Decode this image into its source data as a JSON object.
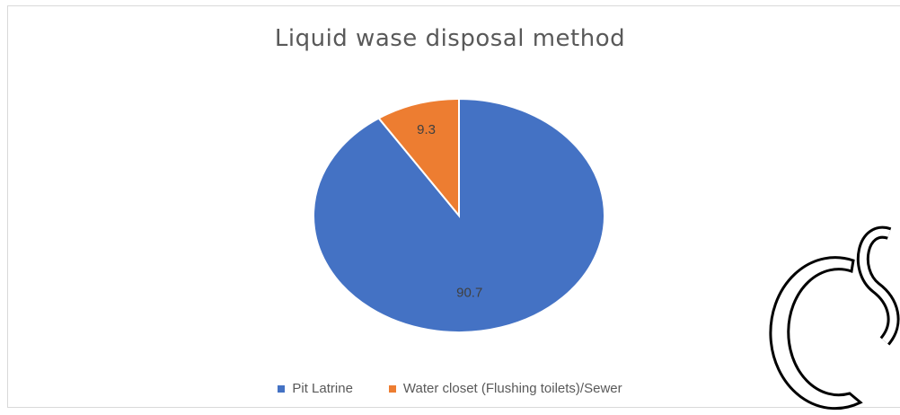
{
  "chart_data": {
    "type": "pie",
    "title": "Liquid wase disposal method",
    "slices": [
      {
        "label": "Pit Latrine",
        "value": 90.7,
        "value_label": "90.7",
        "color": "#4472c4"
      },
      {
        "label": "Water closet (Flushing toilets)/Sewer",
        "value": 9.3,
        "value_label": "9.3",
        "color": "#ed7d31"
      }
    ],
    "legend_position": "bottom"
  }
}
